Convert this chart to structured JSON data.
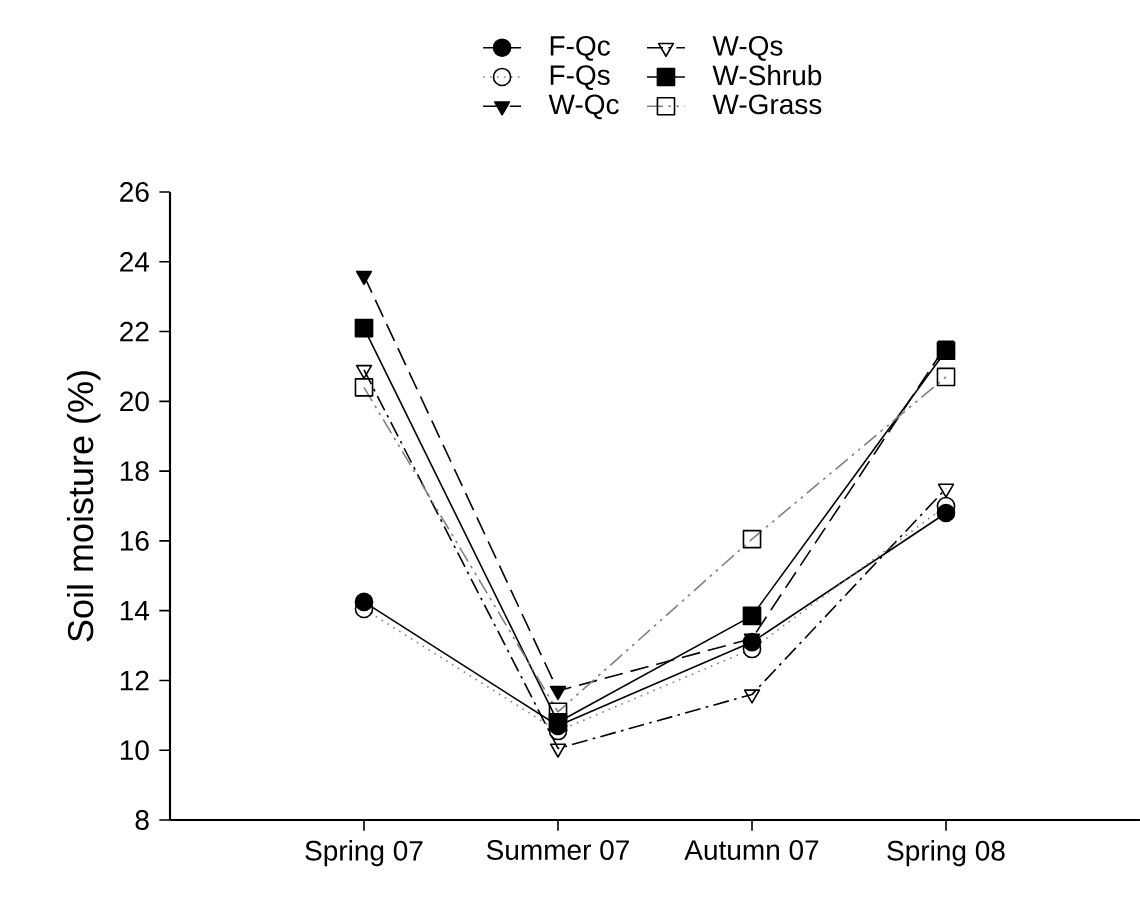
{
  "chart_data": {
    "type": "line",
    "ylabel": "Soil moisture (%)",
    "categories": [
      "Spring 07",
      "Summer 07",
      "Autumn 07",
      "Spring 08"
    ],
    "ylim": [
      8,
      26
    ],
    "yticks": [
      8,
      10,
      12,
      14,
      16,
      18,
      20,
      22,
      24,
      26
    ],
    "grid": false,
    "legend": "top",
    "series": [
      {
        "name": "F-Qc",
        "color": "#000000",
        "marker": "circle",
        "line_style": "solid",
        "values": [
          14.25,
          10.7,
          13.1,
          16.8
        ]
      },
      {
        "name": "F-Qs",
        "color": "#808080",
        "marker": "circle open",
        "line_style": "dotted",
        "values": [
          14.05,
          10.55,
          12.9,
          17.0
        ]
      },
      {
        "name": "W-Qc",
        "color": "#000000",
        "marker": "triangle down",
        "line_style": "dashed",
        "values": [
          23.6,
          11.7,
          13.2,
          21.6
        ]
      },
      {
        "name": "W-Qs",
        "color": "#000000",
        "marker": "triangle down open",
        "line_style": "dashdot",
        "values": [
          20.9,
          10.05,
          11.6,
          17.5
        ]
      },
      {
        "name": "W-Shrub",
        "color": "#000000",
        "marker": "square",
        "line_style": "solid",
        "values": [
          22.1,
          10.8,
          13.85,
          21.45
        ]
      },
      {
        "name": "W-Grass",
        "color": "#808080",
        "marker": "square open",
        "line_style": "dashdotdot",
        "values": [
          20.4,
          11.1,
          16.05,
          20.7
        ]
      }
    ]
  }
}
